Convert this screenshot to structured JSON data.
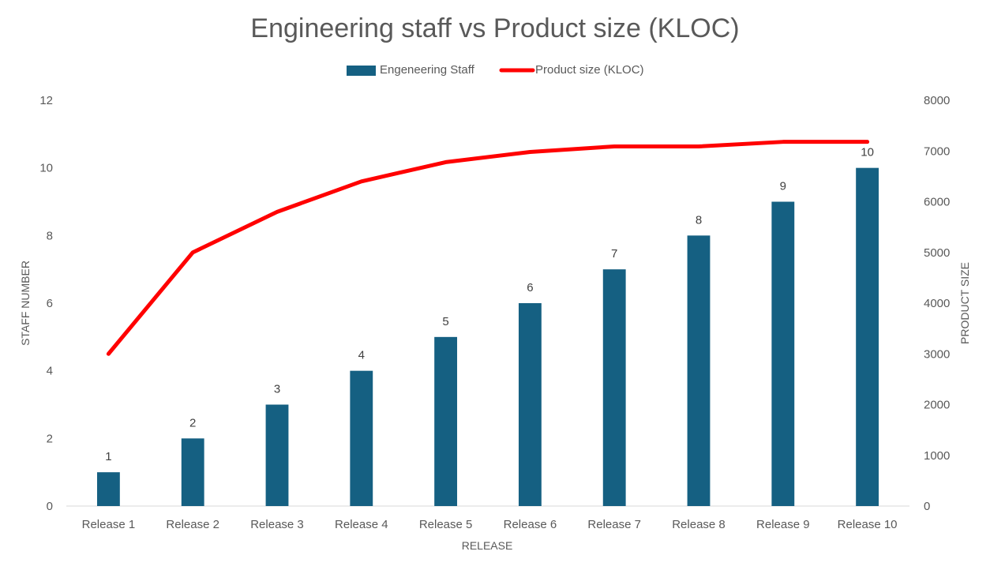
{
  "chart_data": {
    "type": "bar",
    "title": "Engineering staff vs Product size (KLOC)",
    "xlabel": "RELEASE",
    "ylabel": "STAFF NUMBER",
    "y2label": "PRODUCT SIZE",
    "categories": [
      "Release 1",
      "Release 2",
      "Release 3",
      "Release 4",
      "Release 5",
      "Release 6",
      "Release 7",
      "Release 8",
      "Release 9",
      "Release 10"
    ],
    "ylim": [
      0,
      12
    ],
    "y_ticks": [
      "0",
      "2",
      "4",
      "6",
      "8",
      "10",
      "12"
    ],
    "y2lim": [
      0,
      8000
    ],
    "y2_ticks": [
      "0",
      "1000",
      "2000",
      "3000",
      "4000",
      "5000",
      "6000",
      "7000",
      "8000"
    ],
    "grid": false,
    "legend_position": "top-center",
    "series": [
      {
        "name": "Engeneering Staff",
        "type": "bar",
        "axis": "left",
        "color": "#156082",
        "values": [
          1,
          2,
          3,
          4,
          5,
          6,
          7,
          8,
          9,
          10
        ],
        "data_labels": [
          "1",
          "2",
          "3",
          "4",
          "5",
          "6",
          "7",
          "8",
          "9",
          "10"
        ]
      },
      {
        "name": "Product size (KLOC)",
        "type": "line",
        "axis": "right",
        "color": "#ff0000",
        "values": [
          3000,
          5000,
          5800,
          6400,
          6780,
          6980,
          7090,
          7090,
          7180,
          7180
        ]
      }
    ]
  }
}
